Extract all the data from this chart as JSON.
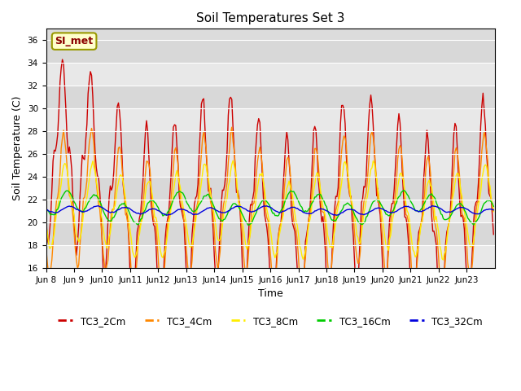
{
  "title": "Soil Temperatures Set 3",
  "xlabel": "Time",
  "ylabel": "Soil Temperature (C)",
  "ylim": [
    16,
    37
  ],
  "yticks": [
    16,
    18,
    20,
    22,
    24,
    26,
    28,
    30,
    32,
    34,
    36
  ],
  "annotation_text": "SI_met",
  "series_colors": [
    "#cc0000",
    "#ff8800",
    "#ffee00",
    "#00cc00",
    "#0000dd"
  ],
  "series_labels": [
    "TC3_2Cm",
    "TC3_4Cm",
    "TC3_8Cm",
    "TC3_16Cm",
    "TC3_32Cm"
  ],
  "line_width": 1.0,
  "bg_color": "#dcdcdc",
  "fig_bg": "#ffffff",
  "tick_label_fontsize": 7.5,
  "axis_label_fontsize": 9,
  "title_fontsize": 11
}
